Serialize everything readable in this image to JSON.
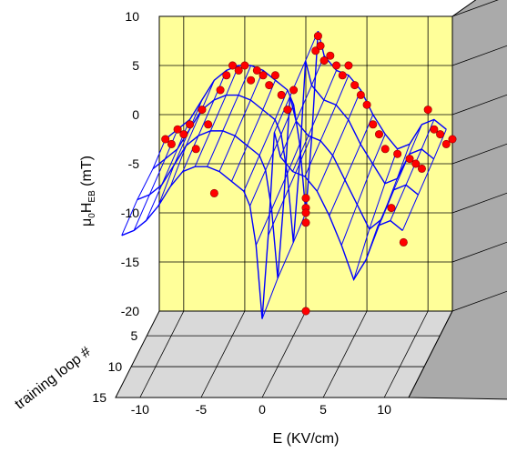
{
  "chart_data": {
    "type": "scatter",
    "subtype": "3d-surface-with-points",
    "xlabel": "E (KV/cm)",
    "ylabel": {
      "prefix": "μ",
      "sub0": "0",
      "mid": "H",
      "sub1": "EB",
      "suffix": " (mT)"
    },
    "zlabel": "training loop #",
    "xlim": [
      -12,
      12
    ],
    "ylim": [
      -20,
      10
    ],
    "zlim": [
      1,
      15
    ],
    "x_ticks": [
      "-10",
      "-5",
      "0",
      "5",
      "10"
    ],
    "y_ticks": [
      "10",
      "5",
      "0",
      "-5",
      "-10",
      "-15",
      "-20"
    ],
    "z_ticks": [
      "5",
      "10",
      "15"
    ],
    "colors": {
      "back_wall": "#ffff99",
      "side_wall": "#aaaaaa",
      "floor": "#d9d9d9",
      "mesh": "#0000ff",
      "points": "#ff0000"
    },
    "grid": true,
    "curve_E": [
      -11.5,
      -10.5,
      -9.5,
      -8.5,
      -7.5,
      -6.5,
      -5.5,
      -4.5,
      -3.5,
      -2.5,
      -1.5,
      -1,
      -0.5,
      0,
      0.5,
      1,
      1.5,
      2.5,
      3.5,
      4.5,
      5.5,
      6.5,
      7.5,
      8.5,
      9.5,
      10.5,
      11.5
    ],
    "series": [
      {
        "loop": 1,
        "values": [
          -2.5,
          -1.5,
          -0.5,
          1.5,
          3.5,
          4.5,
          5,
          5,
          4.5,
          3.5,
          2.5,
          1,
          -3,
          -10,
          -2,
          8.5,
          6,
          4.5,
          4,
          2.5,
          0,
          -2,
          -3.5,
          -3,
          -1,
          -0.5,
          -1.5
        ]
      },
      {
        "loop": 5,
        "values": [
          -3,
          -2,
          -1,
          1,
          3,
          4,
          4.5,
          4.5,
          4,
          3,
          2,
          0.5,
          -3.5,
          -10.5,
          -2.5,
          8,
          5.5,
          4,
          3.5,
          2,
          -0.5,
          -2.5,
          -4.5,
          -4,
          -1.5,
          -1,
          -2
        ]
      },
      {
        "loop": 10,
        "values": [
          -3,
          -2.5,
          -1.5,
          0.5,
          2.5,
          3.5,
          4,
          4,
          3.5,
          2.5,
          1.5,
          0,
          -4,
          -11,
          -3,
          7.5,
          5,
          3.5,
          3,
          1.5,
          -1,
          -3.5,
          -6,
          -5,
          -2,
          -1.5,
          -2.5
        ]
      },
      {
        "loop": 15,
        "values": [
          -3.5,
          -3,
          -2,
          -0.5,
          1.5,
          3,
          3.5,
          3.5,
          3,
          2,
          1,
          -0.5,
          -4.5,
          -12,
          -3.5,
          7,
          4.5,
          3,
          2.5,
          1,
          -1.5,
          -4.5,
          -8,
          -6,
          -2.5,
          -2,
          -3
        ]
      }
    ],
    "points": [
      {
        "x": -11.5,
        "y": -2.5
      },
      {
        "x": -11,
        "y": -3
      },
      {
        "x": -10.5,
        "y": -1.5
      },
      {
        "x": -10,
        "y": -2
      },
      {
        "x": -9.5,
        "y": -1
      },
      {
        "x": -9,
        "y": -3.5
      },
      {
        "x": -8.5,
        "y": 0.5
      },
      {
        "x": -8,
        "y": -1
      },
      {
        "x": -7.5,
        "y": -8
      },
      {
        "x": -7,
        "y": 2.5
      },
      {
        "x": -6.5,
        "y": 4
      },
      {
        "x": -6,
        "y": 5
      },
      {
        "x": -5.5,
        "y": 4.5
      },
      {
        "x": -5,
        "y": 5
      },
      {
        "x": -4.5,
        "y": 3.5
      },
      {
        "x": -4,
        "y": 4.5
      },
      {
        "x": -3.5,
        "y": 4
      },
      {
        "x": -3,
        "y": 3
      },
      {
        "x": -2.5,
        "y": 4
      },
      {
        "x": -2,
        "y": 2
      },
      {
        "x": -1.5,
        "y": 0.5
      },
      {
        "x": -1,
        "y": 2.5
      },
      {
        "x": 0,
        "y": -8.5
      },
      {
        "x": 0,
        "y": -9.5
      },
      {
        "x": 0,
        "y": -10
      },
      {
        "x": 0,
        "y": -11
      },
      {
        "x": 0,
        "y": -20
      },
      {
        "x": 0.8,
        "y": 6.5
      },
      {
        "x": 1,
        "y": 8
      },
      {
        "x": 1.2,
        "y": 7
      },
      {
        "x": 1.5,
        "y": 5.5
      },
      {
        "x": 2,
        "y": 6
      },
      {
        "x": 2.5,
        "y": 5
      },
      {
        "x": 3,
        "y": 4
      },
      {
        "x": 3.5,
        "y": 5
      },
      {
        "x": 4,
        "y": 3
      },
      {
        "x": 4.5,
        "y": 2
      },
      {
        "x": 5,
        "y": 1
      },
      {
        "x": 5.5,
        "y": -1
      },
      {
        "x": 6,
        "y": -2
      },
      {
        "x": 6.5,
        "y": -3.5
      },
      {
        "x": 7,
        "y": -9.5
      },
      {
        "x": 7.5,
        "y": -4
      },
      {
        "x": 8,
        "y": -13
      },
      {
        "x": 8.5,
        "y": -4.5
      },
      {
        "x": 9,
        "y": -5
      },
      {
        "x": 9.5,
        "y": -5.5
      },
      {
        "x": 10,
        "y": 0.5
      },
      {
        "x": 10.5,
        "y": -1.5
      },
      {
        "x": 11,
        "y": -2
      },
      {
        "x": 11.5,
        "y": -3
      },
      {
        "x": 12,
        "y": -2.5
      }
    ]
  }
}
